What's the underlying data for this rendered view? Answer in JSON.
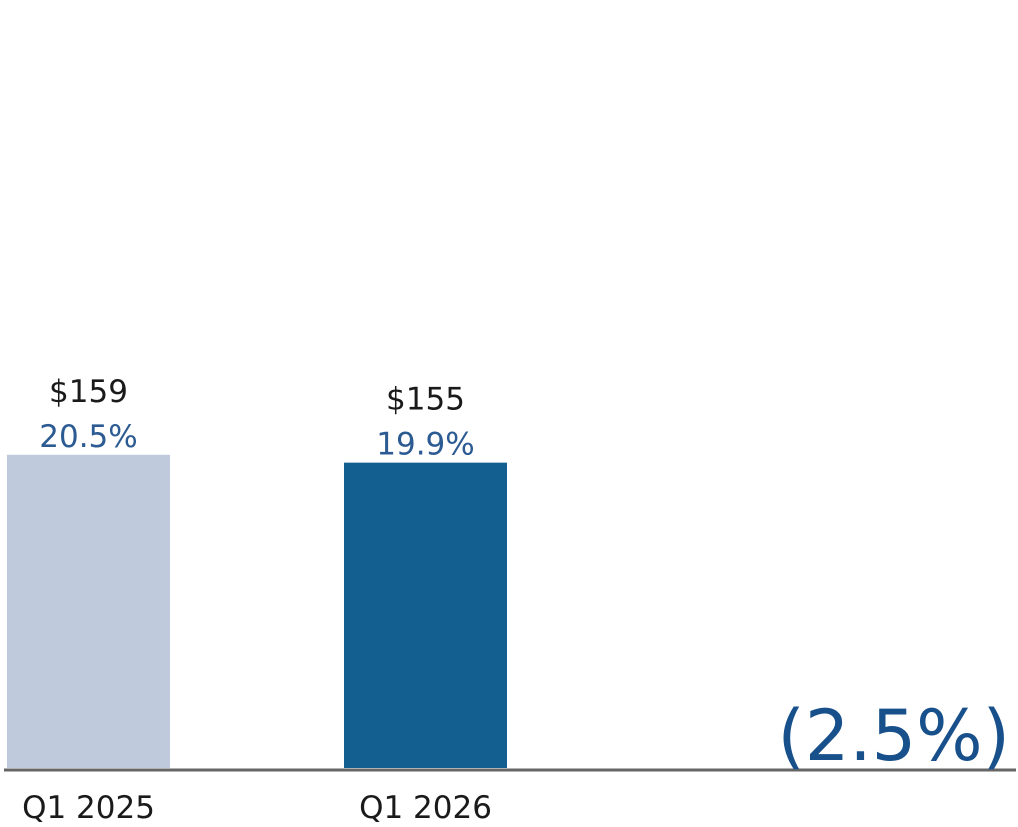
{
  "chart_data": {
    "type": "bar",
    "categories": [
      "Q1 2025",
      "Q1 2026"
    ],
    "values": [
      159,
      155
    ],
    "value_labels": [
      "$159",
      "$155"
    ],
    "margin_labels": [
      "20.5%",
      "19.9%"
    ],
    "bar_colors": [
      "#bfcbdd",
      "#135f8f"
    ],
    "margin_label_color": "#2b5b92",
    "change_label": "(2.5%)",
    "change_color": "#17508a",
    "axis_color": "#666666",
    "title": "",
    "xlabel": "",
    "ylabel": "",
    "grid": false
  }
}
